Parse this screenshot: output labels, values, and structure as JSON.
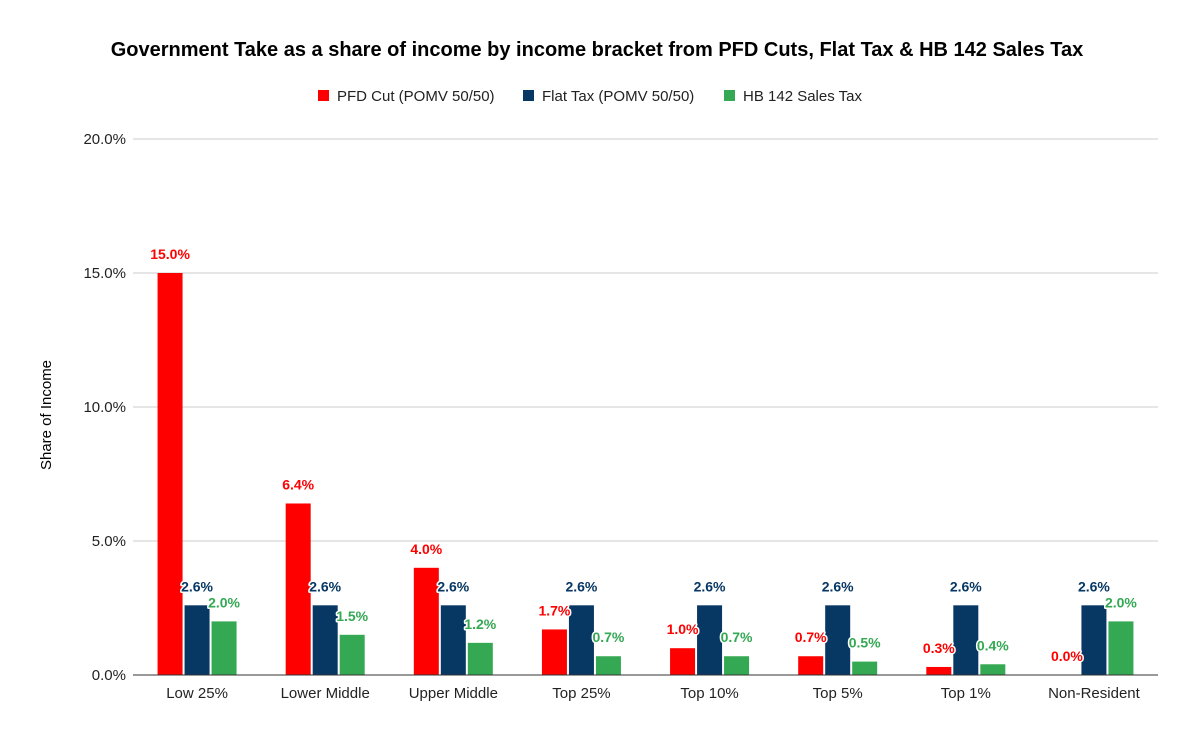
{
  "chart_data": {
    "type": "bar",
    "title": "Government Take as a share of income by income bracket from PFD Cuts, Flat Tax & HB 142 Sales Tax",
    "xlabel": "",
    "ylabel": "Share of Income",
    "ylim": [
      0,
      20
    ],
    "yticks": [
      0,
      5,
      10,
      15,
      20
    ],
    "ytick_labels": [
      "0.0%",
      "5.0%",
      "10.0%",
      "15.0%",
      "20.0%"
    ],
    "grid": true,
    "legend_position": "top",
    "categories": [
      "Low 25%",
      "Lower Middle",
      "Upper Middle",
      "Top 25%",
      "Top 10%",
      "Top 5%",
      "Top 1%",
      "Non-Resident"
    ],
    "series": [
      {
        "name": "PFD Cut (POMV 50/50)",
        "color": "#ff0000",
        "values": [
          15.0,
          6.4,
          4.0,
          1.7,
          1.0,
          0.7,
          0.3,
          0.0
        ],
        "labels": [
          "15.0%",
          "6.4%",
          "4.0%",
          "1.7%",
          "1.0%",
          "0.7%",
          "0.3%",
          "0.0%"
        ]
      },
      {
        "name": "Flat Tax (POMV 50/50)",
        "color": "#073763",
        "values": [
          2.6,
          2.6,
          2.6,
          2.6,
          2.6,
          2.6,
          2.6,
          2.6
        ],
        "labels": [
          "2.6%",
          "2.6%",
          "2.6%",
          "2.6%",
          "2.6%",
          "2.6%",
          "2.6%",
          "2.6%"
        ]
      },
      {
        "name": "HB 142 Sales Tax",
        "color": "#34a853",
        "values": [
          2.0,
          1.5,
          1.2,
          0.7,
          0.7,
          0.5,
          0.4,
          2.0
        ],
        "labels": [
          "2.0%",
          "1.5%",
          "1.2%",
          "0.7%",
          "0.7%",
          "0.5%",
          "0.4%",
          "2.0%"
        ]
      }
    ]
  }
}
